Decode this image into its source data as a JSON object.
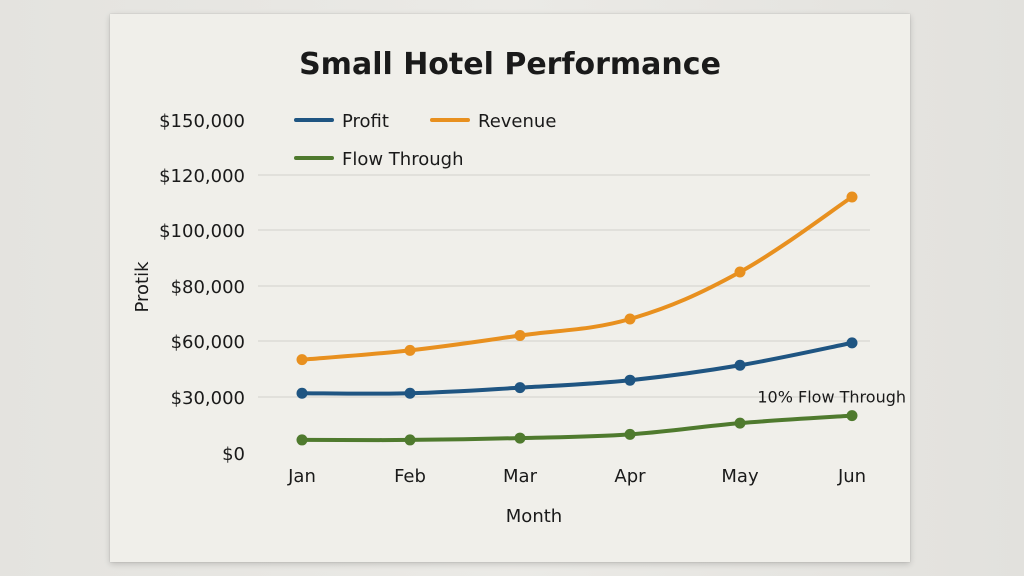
{
  "chart_data": {
    "type": "line",
    "title": "Small Hotel Performance",
    "xlabel": "Month",
    "ylabel": "Protik",
    "categories": [
      "Jan",
      "Feb",
      "Mar",
      "Apr",
      "May",
      "Jun"
    ],
    "yticks": [
      {
        "value": 0,
        "label": "$0"
      },
      {
        "value": 30000,
        "label": "$30,000"
      },
      {
        "value": 60000,
        "label": "$60,000"
      },
      {
        "value": 80000,
        "label": "$80,000"
      },
      {
        "value": 100000,
        "label": "$100,000"
      },
      {
        "value": 120000,
        "label": "$120,000"
      },
      {
        "value": 150000,
        "label": "$150,000"
      }
    ],
    "series": [
      {
        "name": "Profit",
        "color": "#1f5582",
        "values": [
          32000,
          32000,
          35000,
          39000,
          47000,
          59000
        ]
      },
      {
        "name": "Revenue",
        "color": "#e8901f",
        "values": [
          50000,
          55000,
          62000,
          68000,
          85000,
          112000
        ]
      },
      {
        "name": "Flow Through",
        "color": "#4f7a2e",
        "values": [
          7000,
          7000,
          8000,
          10000,
          16000,
          20000
        ]
      }
    ],
    "annotations": [
      {
        "text": "10% Flow Through",
        "series": "Flow Through",
        "category": "Jun"
      }
    ],
    "grid": true,
    "legend_position": "top-left"
  }
}
